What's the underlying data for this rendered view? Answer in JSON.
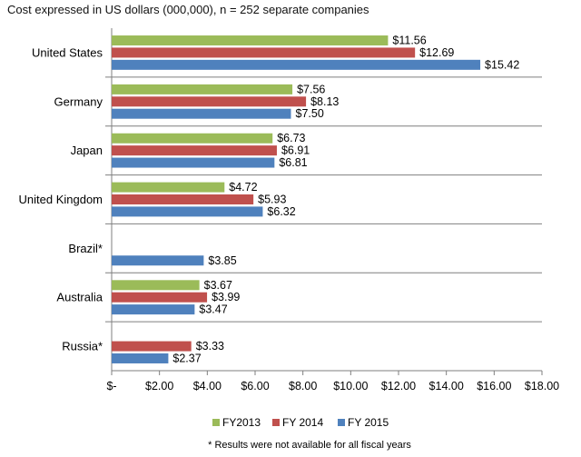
{
  "chart_data": {
    "type": "bar",
    "orientation": "horizontal",
    "subtitle": "Cost expressed in US dollars (000,000), n = 252 separate companies",
    "categories": [
      "United States",
      "Germany",
      "Japan",
      "United Kingdom",
      "Brazil*",
      "Australia",
      "Russia*"
    ],
    "series": [
      {
        "name": "FY2013",
        "color": "#9BBB59",
        "values": [
          11.56,
          7.56,
          6.73,
          4.72,
          null,
          3.67,
          null
        ]
      },
      {
        "name": "FY 2014",
        "color": "#C0504D",
        "values": [
          12.69,
          8.13,
          6.91,
          5.93,
          null,
          3.99,
          3.33
        ]
      },
      {
        "name": "FY 2015",
        "color": "#4F81BD",
        "values": [
          15.42,
          7.5,
          6.81,
          6.32,
          3.85,
          3.47,
          2.37
        ]
      }
    ],
    "value_labels": [
      [
        "$11.56",
        "$7.56",
        "$6.73",
        "$4.72",
        null,
        "$3.67",
        null
      ],
      [
        "$12.69",
        "$8.13",
        "$6.91",
        "$5.93",
        null,
        "$3.99",
        "$3.33"
      ],
      [
        "$15.42",
        "$7.50",
        "$6.81",
        "$6.32",
        "$3.85",
        "$3.47",
        "$2.37"
      ]
    ],
    "xlim": [
      0,
      18
    ],
    "xticks": [
      0,
      2,
      4,
      6,
      8,
      10,
      12,
      14,
      16,
      18
    ],
    "xtick_labels": [
      "$-",
      "$2.00",
      "$4.00",
      "$6.00",
      "$8.00",
      "$10.00",
      "$12.00",
      "$14.00",
      "$16.00",
      "$18.00"
    ],
    "grid": false,
    "legend_position": "bottom",
    "footnote": "* Results were not available for all fiscal years"
  }
}
